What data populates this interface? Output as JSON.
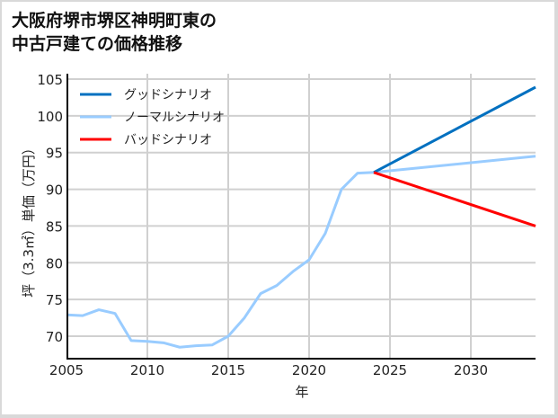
{
  "title": {
    "line1": "大阪府堺市堺区神明町東の",
    "line2": "中古戸建ての価格推移"
  },
  "chart_data": {
    "type": "line",
    "title": "大阪府堺市堺区神明町東の中古戸建ての価格推移",
    "xlabel": "年",
    "ylabel": "坪（3.3㎡）単価（万円）",
    "xlim": [
      2005,
      2034
    ],
    "ylim": [
      67,
      105.5
    ],
    "x_ticks": [
      2005,
      2010,
      2015,
      2020,
      2025,
      2030
    ],
    "y_ticks": [
      70,
      75,
      80,
      85,
      90,
      95,
      100,
      105
    ],
    "grid": true,
    "legend_position": "upper left",
    "colors": {
      "good": "#0070c0",
      "normal": "#99ccff",
      "bad": "#ff0000",
      "grid": "#d0d0d0",
      "axis": "#000000"
    },
    "series": [
      {
        "name": "グッドシナリオ",
        "color": "#0070c0",
        "x": [
          2024,
          2034
        ],
        "values": [
          92.3,
          103.9
        ]
      },
      {
        "name": "ノーマルシナリオ",
        "color": "#99ccff",
        "x": [
          2005,
          2006,
          2007,
          2008,
          2009,
          2010,
          2011,
          2012,
          2013,
          2014,
          2015,
          2016,
          2017,
          2018,
          2019,
          2020,
          2021,
          2022,
          2023,
          2024,
          2034
        ],
        "values": [
          72.9,
          72.8,
          73.6,
          73.1,
          69.4,
          69.3,
          69.1,
          68.5,
          68.7,
          68.8,
          70.0,
          72.5,
          75.8,
          76.9,
          78.8,
          80.4,
          84.0,
          90.0,
          92.2,
          92.3,
          94.5
        ]
      },
      {
        "name": "バッドシナリオ",
        "color": "#ff0000",
        "x": [
          2024,
          2034
        ],
        "values": [
          92.3,
          85.0
        ]
      }
    ]
  }
}
